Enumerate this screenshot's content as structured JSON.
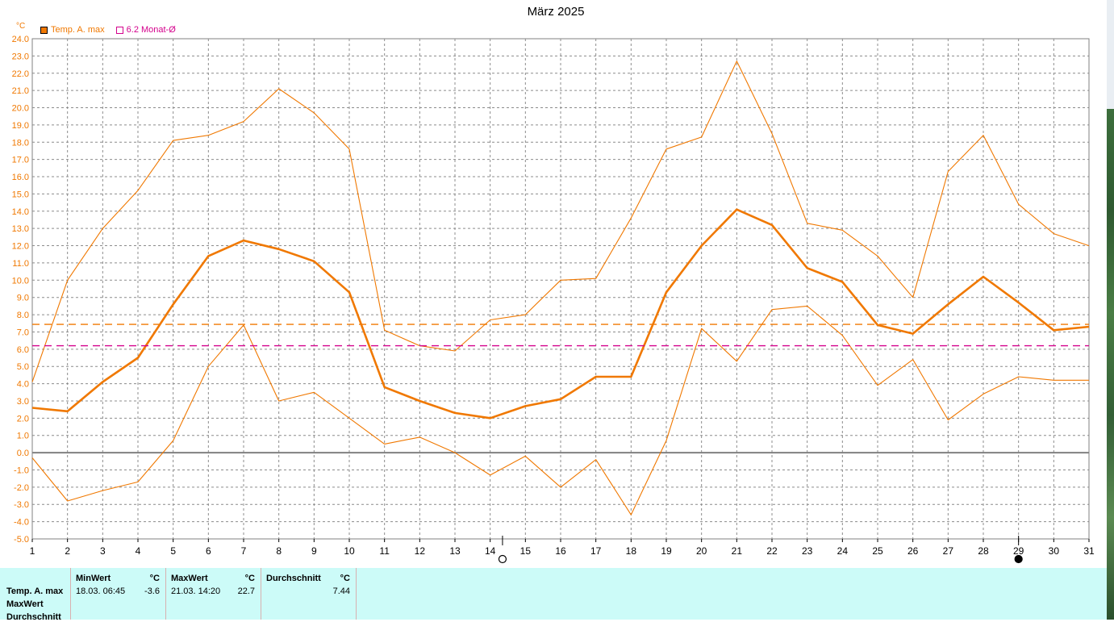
{
  "title": "März 2025",
  "unit": "°C",
  "legend": [
    {
      "label": "Temp. A. max",
      "color": "#f07800"
    },
    {
      "label": "6.2 Monat-Ø",
      "color": "#d4008c"
    }
  ],
  "moon_icons": [
    "full-moon-icon",
    "new-moon-icon"
  ],
  "chart_data": {
    "type": "line",
    "title": "März 2025",
    "xlabel": "",
    "ylabel": "°C",
    "x": [
      1,
      2,
      3,
      4,
      5,
      6,
      7,
      8,
      9,
      10,
      11,
      12,
      13,
      14,
      15,
      16,
      17,
      18,
      19,
      20,
      21,
      22,
      23,
      24,
      25,
      26,
      27,
      28,
      29,
      30,
      31
    ],
    "ylim": [
      -5,
      24
    ],
    "grid": true,
    "legend_position": "top-left",
    "series": [
      {
        "name": "Temp. A. max",
        "role": "mean",
        "color": "#f07800",
        "values": [
          2.6,
          2.4,
          4.1,
          5.5,
          8.6,
          11.4,
          12.3,
          11.8,
          11.1,
          9.3,
          3.8,
          3.0,
          2.3,
          2.0,
          2.7,
          3.1,
          4.4,
          4.4,
          9.3,
          12.0,
          14.1,
          13.2,
          10.7,
          9.9,
          7.4,
          6.9,
          8.6,
          10.2,
          8.7,
          7.1,
          7.3
        ]
      },
      {
        "role": "upper",
        "color": "#f07800",
        "values": [
          4.1,
          10.0,
          13.0,
          15.2,
          18.1,
          18.4,
          19.2,
          21.1,
          19.7,
          17.6,
          7.1,
          6.2,
          5.9,
          7.7,
          8.0,
          10.0,
          10.1,
          13.6,
          17.6,
          18.3,
          22.7,
          18.5,
          13.3,
          12.9,
          11.4,
          9.0,
          16.3,
          18.4,
          14.4,
          12.7,
          12.0
        ]
      },
      {
        "role": "lower",
        "color": "#f07800",
        "values": [
          -0.3,
          -2.8,
          -2.2,
          -1.7,
          0.7,
          5.0,
          7.4,
          3.0,
          3.5,
          2.0,
          0.5,
          0.9,
          0.0,
          -1.3,
          -0.2,
          -2.0,
          -0.4,
          -3.6,
          0.7,
          7.2,
          5.3,
          8.3,
          8.5,
          6.8,
          3.9,
          5.4,
          1.9,
          3.4,
          4.4,
          4.2,
          4.2
        ]
      },
      {
        "name": "6.2 Monat-Ø",
        "role": "reference",
        "color": "#d4008c",
        "constant": 6.2
      },
      {
        "role": "mean-line",
        "color": "#f07800",
        "constant": 7.44
      }
    ],
    "markers": [
      {
        "x": 14.35,
        "type": "full-moon"
      },
      {
        "x": 29.0,
        "type": "new-moon"
      }
    ]
  },
  "stats": {
    "row_labels": [
      "Temp. A. max",
      "MaxWert",
      "Durchschnitt"
    ],
    "min": {
      "header": "MinWert",
      "unit": "°C",
      "date": "18.03.  06:45",
      "value": "-3.6"
    },
    "max": {
      "header": "MaxWert",
      "unit": "°C",
      "date": "21.03.  14:20",
      "value": "22.7"
    },
    "avg": {
      "header": "Durchschnitt",
      "unit": "°C",
      "value": "7.44"
    }
  }
}
